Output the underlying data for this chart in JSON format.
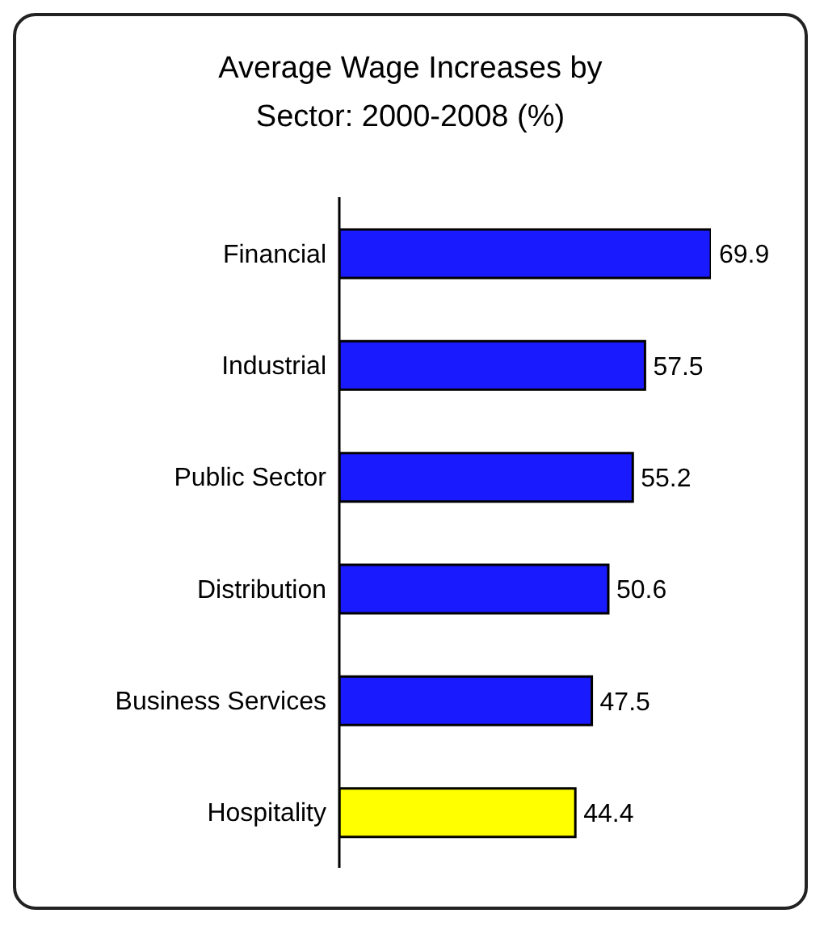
{
  "chart_data": {
    "type": "bar",
    "orientation": "horizontal",
    "title": "Average Wage Increases by Sector: 2000-2008 (%)",
    "categories": [
      "Financial",
      "Industrial",
      "Public Sector",
      "Distribution",
      "Business Services",
      "Hospitality"
    ],
    "values": [
      69.9,
      57.5,
      55.2,
      50.6,
      47.5,
      44.4
    ],
    "colors": [
      "#1a1aff",
      "#1a1aff",
      "#1a1aff",
      "#1a1aff",
      "#1a1aff",
      "#ffff00"
    ],
    "tick_labels": "y",
    "data_labels": true,
    "grid": false,
    "legend": false
  }
}
